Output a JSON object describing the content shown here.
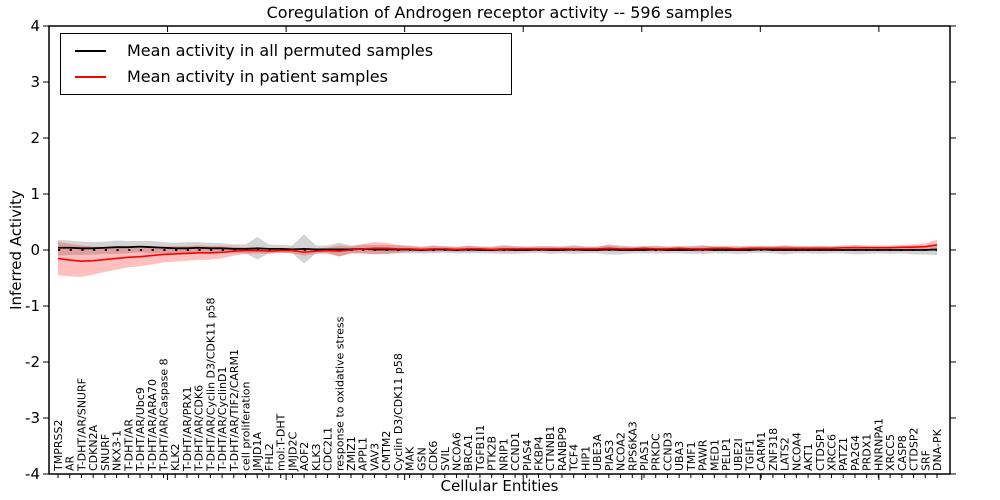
{
  "colors": {
    "background": "#ffffff",
    "frame": "#000000",
    "permuted_line": "#000000",
    "patient_line": "#ff0000",
    "permuted_band": "rgba(110,110,110,0.30)",
    "patient_band": "rgba(255,0,0,0.25)"
  },
  "chart_data": {
    "type": "line",
    "title": "Coregulation of Androgen receptor activity -- 596 samples",
    "xlabel": "Cellular Entities",
    "ylabel": "Inferred Activity",
    "ylim": [
      -4,
      4
    ],
    "yticks": [
      4,
      3,
      2,
      1,
      0,
      -1,
      -2,
      -3,
      -4
    ],
    "grid": false,
    "legend_position": "upper left",
    "zero_reference_line": {
      "y": 0,
      "style": "dotted",
      "color": "#000000"
    },
    "categories": [
      "TMPRSS2",
      "AR",
      "T-DHT/AR/SNURF",
      "CDKN2A",
      "SNURF",
      "NKX3-1",
      "T-DHT/AR",
      "T-DHT/AR/Ubc9",
      "T-DHT/AR/ARA70",
      "T-DHT/AR/Caspase 8",
      "KLK2",
      "T-DHT/AR/PRX1",
      "T-DHT/AR/CDK6",
      "T-DHT/AR/Cyclin D3/CDK11 p58",
      "T-DHT/AR/CyclinD1",
      "T-DHT/AR/TIF2/CARM1",
      "cell proliferation",
      "JMJD1A",
      "FHL2",
      "mol:T-DHT",
      "JMJD2C",
      "AOF2",
      "KLK3",
      "CDC2L1",
      "response to oxidative stress",
      "ZMIZ1",
      "APPL1",
      "VAV3",
      "CMTM2",
      "Cyclin D3/CDK11 p58",
      "MAK",
      "GSN",
      "CDK6",
      "SVIL",
      "NCOA6",
      "BRCA1",
      "TGFB1I1",
      "PTK2B",
      "NRIP1",
      "CCND1",
      "PIAS4",
      "FKBP4",
      "CTNNB1",
      "RANBP9",
      "TCF4",
      "HIP1",
      "UBE3A",
      "PIAS3",
      "NCOA2",
      "RPS6KA3",
      "PIAS1",
      "PRKDC",
      "CCND3",
      "UBA3",
      "TMF1",
      "PAWR",
      "MED1",
      "PELP1",
      "UBE2I",
      "TGIF1",
      "CARM1",
      "ZNF318",
      "LATS2",
      "NCOA4",
      "AKT1",
      "CTDSP1",
      "XRCC6",
      "PATZ1",
      "PA2G4",
      "PRDX1",
      "HNRNPA1",
      "XRCC5",
      "CASP8",
      "CTDSP2",
      "SRF",
      "DNA-PK"
    ],
    "series": [
      {
        "name": "Mean activity in all permuted samples",
        "color": "#000000",
        "line_style": "solid",
        "values": [
          0.04,
          0.04,
          0.03,
          0.03,
          0.04,
          0.05,
          0.05,
          0.06,
          0.05,
          0.04,
          0.03,
          0.03,
          0.04,
          0.03,
          0.03,
          0.02,
          0.02,
          0.03,
          0.02,
          0.02,
          0.01,
          0.02,
          0.01,
          0.01,
          0.01,
          0.01,
          0.02,
          0.01,
          0.01,
          0.01,
          0.01,
          0.0,
          0.01,
          0.01,
          0.0,
          0.01,
          0.0,
          0.0,
          0.01,
          0.0,
          0.0,
          0.01,
          0.0,
          0.0,
          0.01,
          0.0,
          0.0,
          0.01,
          0.0,
          0.0,
          0.0,
          0.01,
          0.0,
          0.0,
          0.0,
          0.01,
          0.0,
          0.0,
          0.0,
          0.0,
          0.01,
          0.0,
          0.0,
          0.0,
          0.0,
          0.0,
          0.0,
          0.0,
          0.0,
          0.0,
          0.0,
          0.0,
          0.0,
          0.0,
          0.0,
          0.01
        ],
        "band_halfwidth": [
          0.14,
          0.13,
          0.12,
          0.11,
          0.11,
          0.12,
          0.11,
          0.1,
          0.11,
          0.1,
          0.1,
          0.11,
          0.1,
          0.1,
          0.09,
          0.08,
          0.08,
          0.2,
          0.08,
          0.07,
          0.07,
          0.26,
          0.07,
          0.07,
          0.12,
          0.07,
          0.07,
          0.08,
          0.08,
          0.07,
          0.07,
          0.06,
          0.07,
          0.06,
          0.06,
          0.07,
          0.06,
          0.06,
          0.08,
          0.07,
          0.06,
          0.06,
          0.07,
          0.06,
          0.08,
          0.06,
          0.06,
          0.09,
          0.08,
          0.06,
          0.06,
          0.07,
          0.06,
          0.06,
          0.07,
          0.08,
          0.06,
          0.06,
          0.07,
          0.06,
          0.06,
          0.06,
          0.08,
          0.06,
          0.06,
          0.07,
          0.06,
          0.06,
          0.08,
          0.07,
          0.06,
          0.07,
          0.06,
          0.08,
          0.08,
          0.1
        ]
      },
      {
        "name": "Mean activity in patient samples",
        "color": "#ff0000",
        "line_style": "solid",
        "values": [
          -0.15,
          -0.18,
          -0.2,
          -0.19,
          -0.17,
          -0.15,
          -0.13,
          -0.12,
          -0.1,
          -0.08,
          -0.07,
          -0.06,
          -0.05,
          -0.05,
          -0.04,
          -0.02,
          -0.01,
          -0.01,
          -0.02,
          -0.01,
          -0.01,
          -0.04,
          -0.02,
          -0.01,
          -0.02,
          0.0,
          0.02,
          0.03,
          0.03,
          0.02,
          0.02,
          0.01,
          0.02,
          0.02,
          0.01,
          0.02,
          0.02,
          0.01,
          0.02,
          0.02,
          0.02,
          0.02,
          0.02,
          0.02,
          0.02,
          0.02,
          0.02,
          0.03,
          0.02,
          0.02,
          0.03,
          0.02,
          0.02,
          0.03,
          0.02,
          0.02,
          0.03,
          0.03,
          0.02,
          0.03,
          0.03,
          0.03,
          0.03,
          0.03,
          0.03,
          0.03,
          0.03,
          0.04,
          0.04,
          0.04,
          0.04,
          0.04,
          0.05,
          0.05,
          0.06,
          0.09
        ],
        "band_halfwidth": [
          0.3,
          0.29,
          0.28,
          0.25,
          0.22,
          0.2,
          0.18,
          0.17,
          0.16,
          0.14,
          0.14,
          0.13,
          0.13,
          0.12,
          0.11,
          0.08,
          0.06,
          0.05,
          0.05,
          0.04,
          0.05,
          0.06,
          0.05,
          0.05,
          0.1,
          0.06,
          0.09,
          0.11,
          0.1,
          0.07,
          0.05,
          0.04,
          0.05,
          0.04,
          0.04,
          0.05,
          0.04,
          0.04,
          0.05,
          0.04,
          0.04,
          0.04,
          0.04,
          0.04,
          0.04,
          0.04,
          0.04,
          0.05,
          0.04,
          0.04,
          0.04,
          0.04,
          0.04,
          0.04,
          0.04,
          0.05,
          0.04,
          0.04,
          0.04,
          0.04,
          0.04,
          0.04,
          0.05,
          0.04,
          0.04,
          0.04,
          0.04,
          0.04,
          0.05,
          0.04,
          0.04,
          0.04,
          0.04,
          0.05,
          0.06,
          0.09
        ]
      }
    ]
  }
}
